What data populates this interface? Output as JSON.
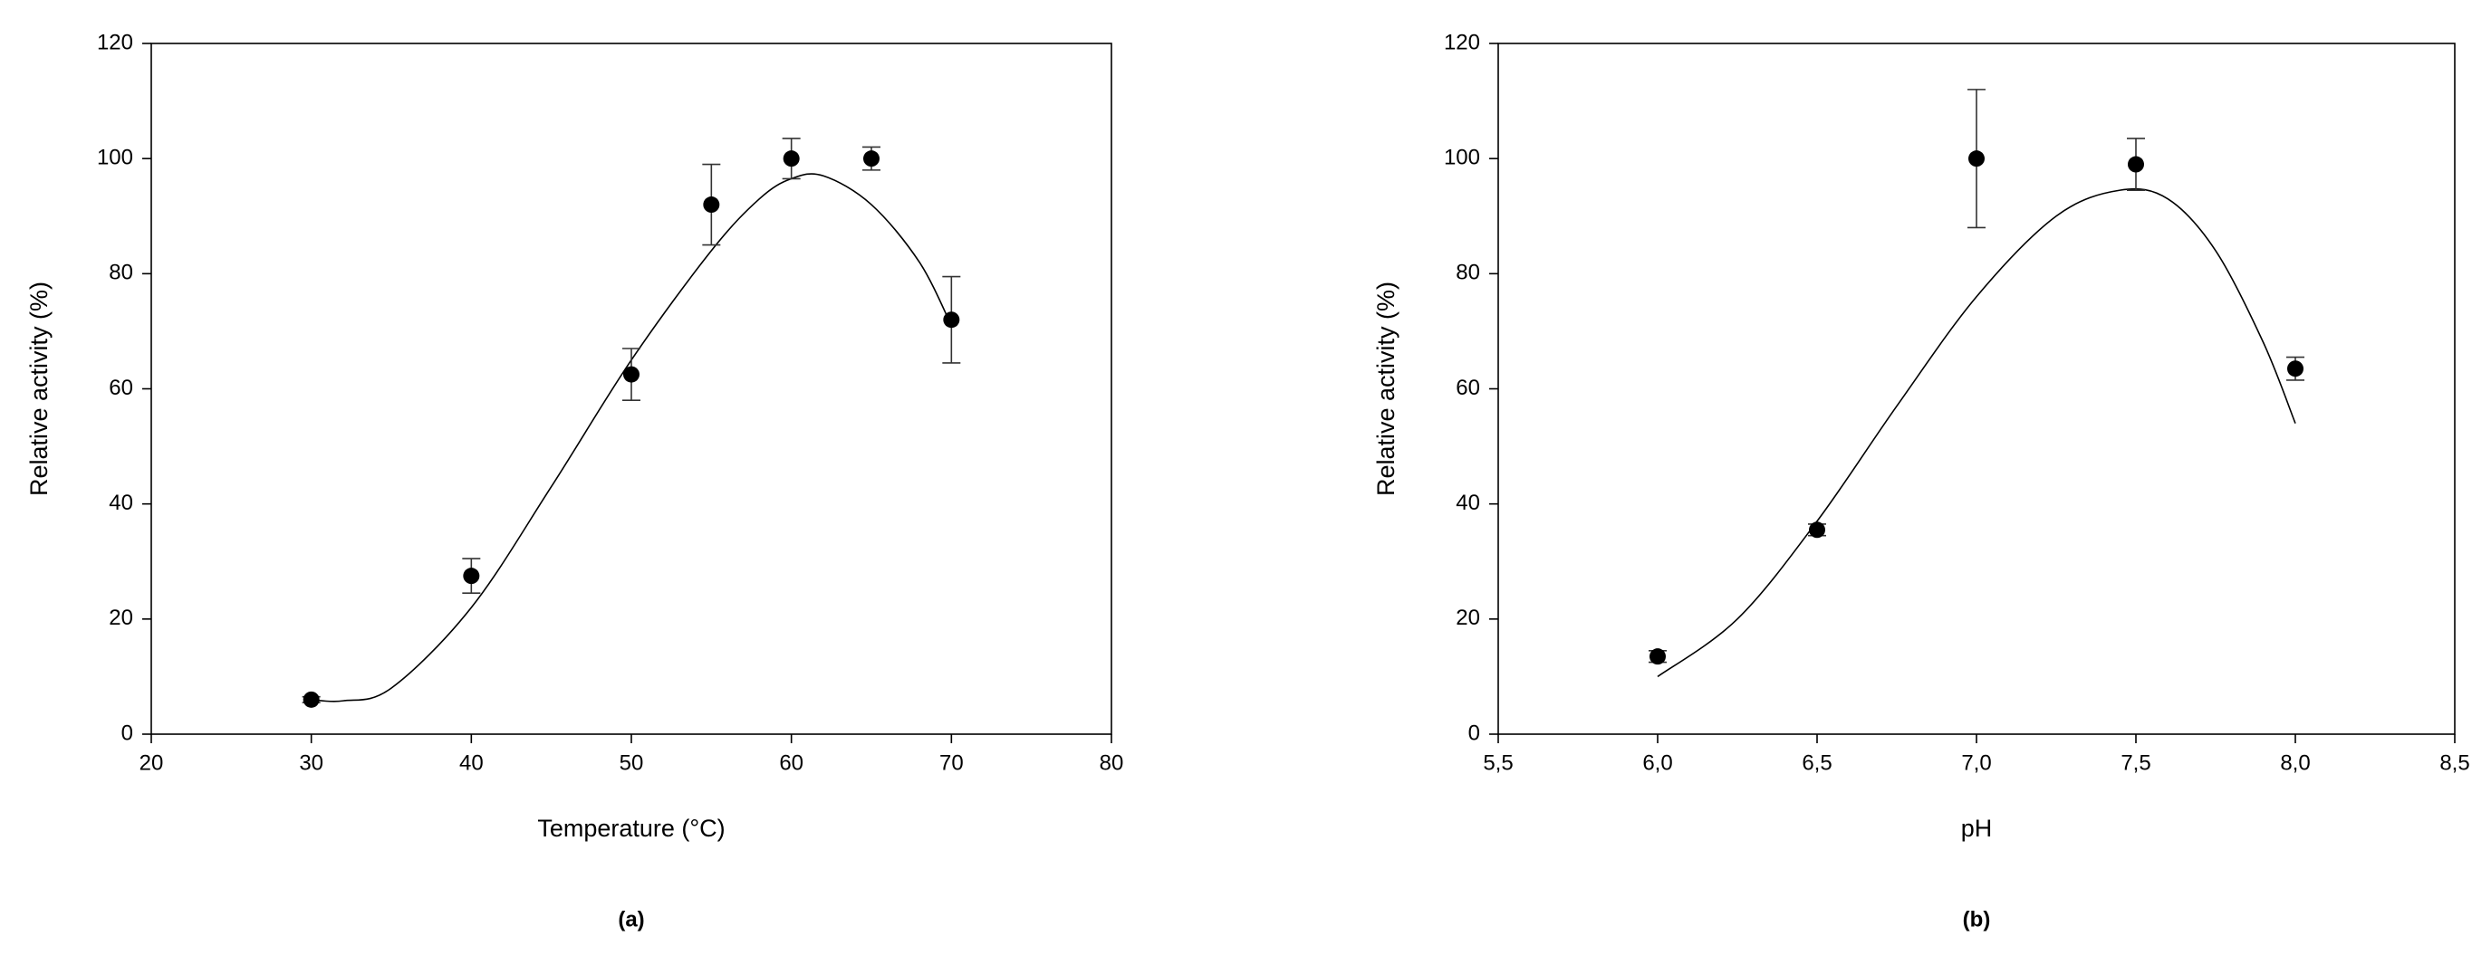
{
  "chart_data": [
    {
      "type": "scatter",
      "caption": "(a)",
      "xlabel": "Temperature (°C)",
      "ylabel": "Relative activity (%)",
      "x": [
        30,
        40,
        50,
        55,
        60,
        65,
        70
      ],
      "values": [
        6,
        27.5,
        62.5,
        92,
        100,
        100,
        72
      ],
      "errors": [
        0.5,
        3,
        4.5,
        7,
        3.5,
        2,
        7.5
      ],
      "color": "#000000",
      "fit": {
        "x": [
          30,
          32,
          35,
          40,
          45,
          50,
          55,
          58,
          60,
          62,
          65,
          68,
          70
        ],
        "values": [
          6,
          5.8,
          8,
          22,
          43,
          65,
          84,
          93,
          96.5,
          97,
          92,
          82,
          71
        ]
      },
      "xlim": [
        20,
        80
      ],
      "xticks": [
        20,
        30,
        40,
        50,
        60,
        70,
        80
      ],
      "ylim": [
        0,
        120
      ],
      "yticks": [
        0,
        20,
        40,
        60,
        80,
        100,
        120
      ]
    },
    {
      "type": "scatter",
      "caption": "(b)",
      "xlabel": "pH",
      "ylabel": "Relative activity (%)",
      "x": [
        6.0,
        6.5,
        7.0,
        7.5,
        8.0
      ],
      "values": [
        13.5,
        35.5,
        100,
        99,
        63.5
      ],
      "errors": [
        1,
        1,
        12,
        4.5,
        2
      ],
      "color": "#000000",
      "fit": {
        "x": [
          6.0,
          6.25,
          6.5,
          6.75,
          7.0,
          7.25,
          7.45,
          7.6,
          7.75,
          7.9,
          8.0
        ],
        "values": [
          10,
          20,
          37,
          57,
          76,
          90,
          94.5,
          93,
          84,
          68,
          54
        ]
      },
      "xlim": [
        5.5,
        8.5
      ],
      "xticks": [
        {
          "value": 5.5,
          "label": "5,5"
        },
        {
          "value": 6.0,
          "label": "6,0"
        },
        {
          "value": 6.5,
          "label": "6,5"
        },
        {
          "value": 7.0,
          "label": "7,0"
        },
        {
          "value": 7.5,
          "label": "7,5"
        },
        {
          "value": 8.0,
          "label": "8,0"
        },
        {
          "value": 8.5,
          "label": "8,5"
        }
      ],
      "ylim": [
        0,
        120
      ],
      "yticks": [
        0,
        20,
        40,
        60,
        80,
        100,
        120
      ]
    }
  ]
}
